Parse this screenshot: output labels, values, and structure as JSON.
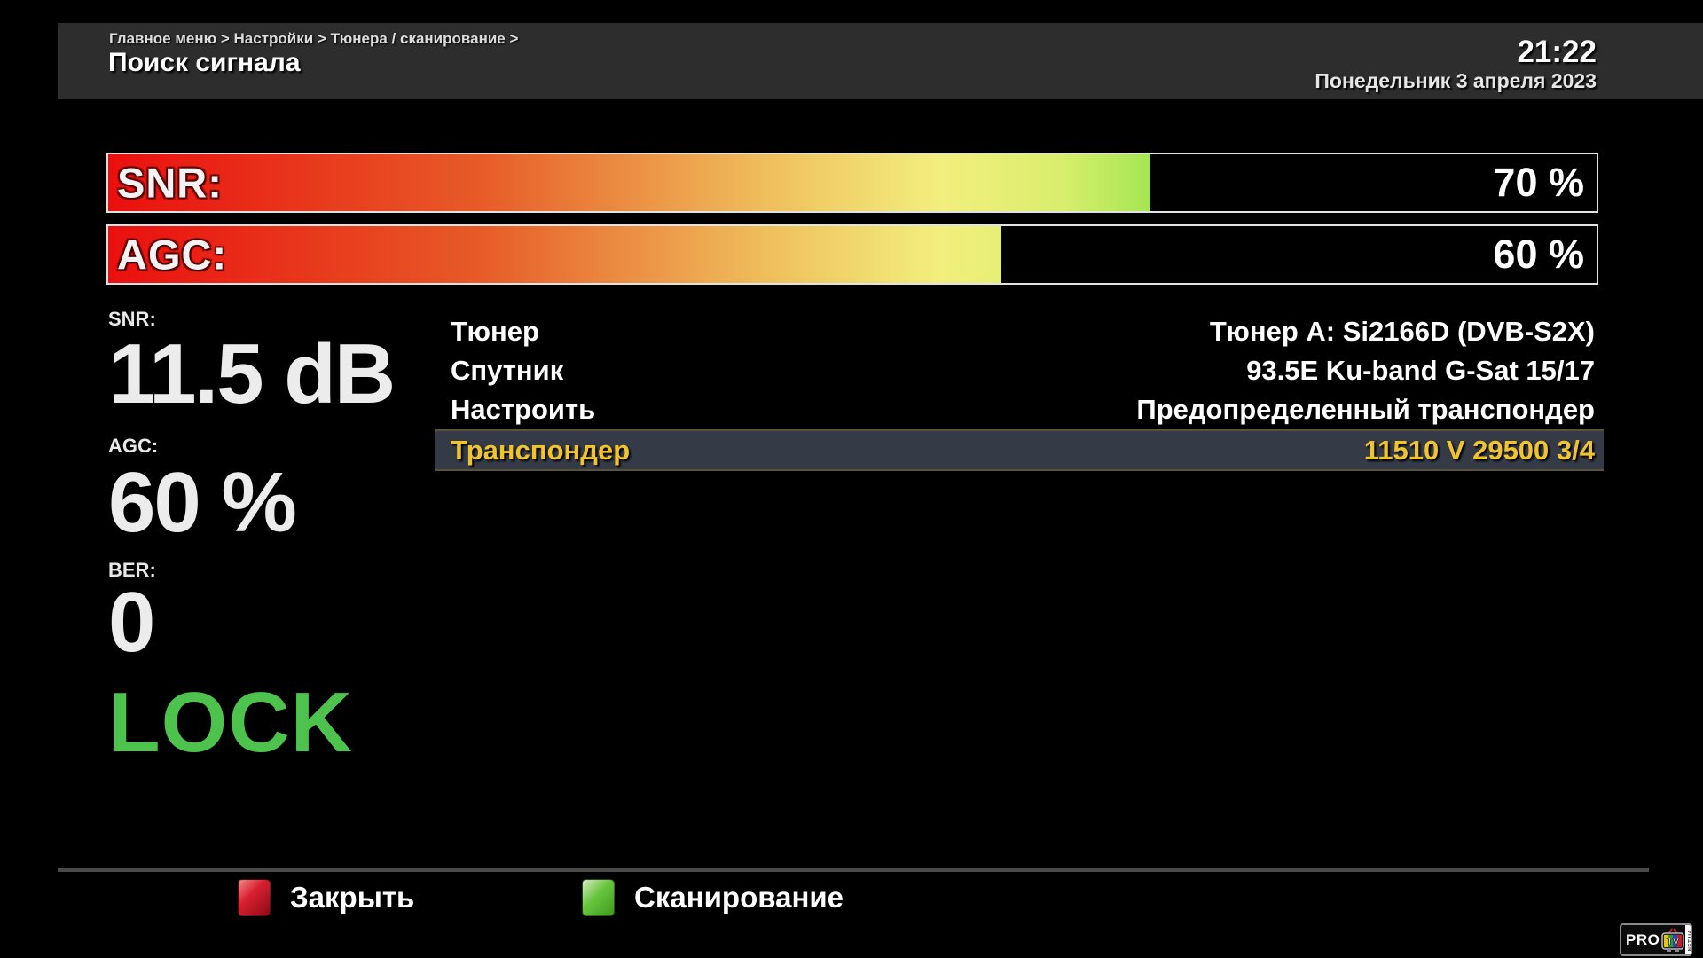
{
  "header": {
    "breadcrumb": "Главное меню > Настройки > Тюнера / сканирование >",
    "title": "Поиск сигнала",
    "time": "21:22",
    "date": "Понедельник  3 апреля 2023"
  },
  "meters": [
    {
      "label": "SNR:",
      "percent": 70,
      "value_text": "70 %"
    },
    {
      "label": "AGC:",
      "percent": 60,
      "value_text": "60 %"
    }
  ],
  "signal_readout": {
    "snr_label": "SNR:",
    "snr_value": "11.5 dB",
    "agc_label": "AGC:",
    "agc_value": "60 %",
    "ber_label": "BER:",
    "ber_value": "0",
    "lock_status": "LOCK"
  },
  "menu": {
    "rows": [
      {
        "label": "Тюнер",
        "value": "Тюнер A: Si2166D (DVB-S2X)",
        "selected": false
      },
      {
        "label": "Спутник",
        "value": "93.5E Ku-band G-Sat 15/17",
        "selected": false
      },
      {
        "label": "Настроить",
        "value": "Предопределенный транспондер",
        "selected": false
      },
      {
        "label": "Транспондер",
        "value": "11510 V 29500 3/4",
        "selected": true
      }
    ]
  },
  "footer": {
    "buttons": [
      {
        "key": "red",
        "label": "Закрыть"
      },
      {
        "key": "green",
        "label": "Сканирование"
      }
    ]
  },
  "logo": {
    "pro": "PRO",
    "tv": "TV",
    "side": "NET.UA"
  },
  "colors": {
    "background": "#000000",
    "header_bar": "#2d2d2d",
    "accent_gold": "#f0c42e",
    "lock_green": "#4dc24d",
    "selected_row_bg": "#353a47",
    "meter_gradient_start": "#ea0f0f",
    "meter_gradient_end": "#2ab71d",
    "button_red": "#d92030",
    "button_green": "#66c43c"
  }
}
